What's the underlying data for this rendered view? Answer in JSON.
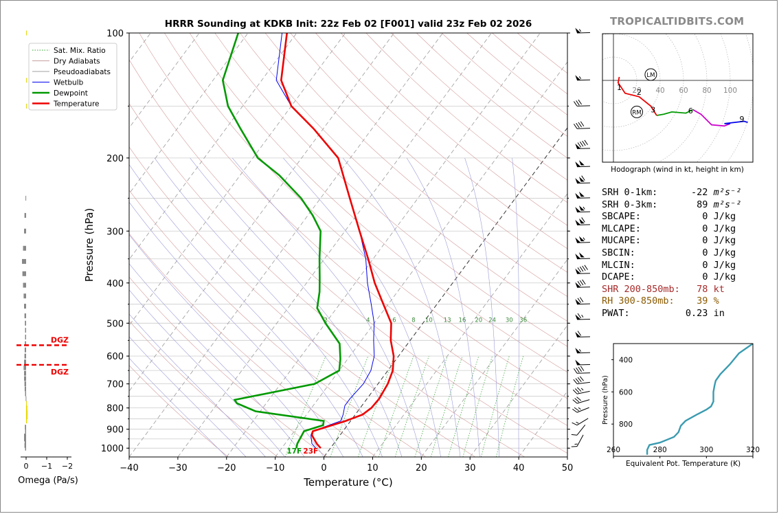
{
  "brand": "TROPICALTIDBITS.COM",
  "title": "HRRR Sounding at KDKB Init: 22z Feb 02 [F001] valid 23z Feb 02 2026",
  "skewt": {
    "xlabel": "Temperature (°C)",
    "ylabel": "Pressure (hPa)",
    "x_ticks": [
      -40,
      -30,
      -20,
      -10,
      0,
      10,
      20,
      30,
      40,
      50
    ],
    "x_tick_labels": [
      "−40",
      "−30",
      "−20",
      "−10",
      "0",
      "10",
      "20",
      "30",
      "40",
      "50"
    ],
    "p_ticks": [
      100,
      200,
      300,
      400,
      500,
      600,
      700,
      800,
      900,
      1000
    ],
    "mixing_ratio_labels": [
      "2",
      "4",
      "6",
      "8",
      "10",
      "13",
      "16",
      "20",
      "24",
      "30",
      "36"
    ],
    "surface_dewpoint_label": "17F",
    "surface_temp_label": "23F",
    "legend": [
      {
        "label": "Sat. Mix. Ratio",
        "color": "#2ca02c",
        "style": "dotted"
      },
      {
        "label": "Dry Adiabats",
        "color": "#c8a0a0",
        "style": "solid"
      },
      {
        "label": "Pseudoadiabats",
        "color": "#a0a0a0",
        "style": "solid"
      },
      {
        "label": "Wetbulb",
        "color": "#0000ee",
        "style": "solid"
      },
      {
        "label": "Dewpoint",
        "color": "#009900",
        "style": "solid"
      },
      {
        "label": "Temperature",
        "color": "#ee0000",
        "style": "solid"
      }
    ]
  },
  "chart_data": [
    {
      "type": "line",
      "name": "skew-t",
      "xlim": [
        -40,
        50
      ],
      "ylim_hpa": [
        1050,
        100
      ],
      "series": [
        {
          "name": "Temperature",
          "color": "#ee0000",
          "points": [
            [
              -2.0,
              1000
            ],
            [
              -3.5,
              975
            ],
            [
              -5.8,
              930
            ],
            [
              -6.2,
              910
            ],
            [
              -1.0,
              860
            ],
            [
              1.5,
              830
            ],
            [
              2.3,
              800
            ],
            [
              2.5,
              760
            ],
            [
              2.0,
              700
            ],
            [
              1.0,
              650
            ],
            [
              -1.0,
              600
            ],
            [
              -4.0,
              550
            ],
            [
              -6.5,
              500
            ],
            [
              -11.0,
              450
            ],
            [
              -16.0,
              400
            ],
            [
              -21.0,
              350
            ],
            [
              -27.0,
              300
            ],
            [
              -34.0,
              250
            ],
            [
              -42.5,
              200
            ],
            [
              -52.0,
              170
            ],
            [
              -60.0,
              150
            ],
            [
              -66.0,
              130
            ],
            [
              -72.0,
              100
            ]
          ]
        },
        {
          "name": "Dewpoint",
          "color": "#009900",
          "points": [
            [
              -7.0,
              1000
            ],
            [
              -7.5,
              975
            ],
            [
              -8.0,
              910
            ],
            [
              -5.0,
              880
            ],
            [
              -5.5,
              860
            ],
            [
              -21.0,
              815
            ],
            [
              -26.0,
              780
            ],
            [
              -27.0,
              765
            ],
            [
              -13.0,
              700
            ],
            [
              -10.0,
              650
            ],
            [
              -11.5,
              610
            ],
            [
              -14.0,
              560
            ],
            [
              -20.0,
              500
            ],
            [
              -24.0,
              460
            ],
            [
              -26.0,
              420
            ],
            [
              -28.0,
              390
            ],
            [
              -31.0,
              350
            ],
            [
              -35.0,
              300
            ],
            [
              -39.0,
              275
            ],
            [
              -44.0,
              250
            ],
            [
              -52.0,
              220
            ],
            [
              -59.0,
              200
            ],
            [
              -67.0,
              170
            ],
            [
              -73.0,
              150
            ],
            [
              -78.0,
              130
            ],
            [
              -82.0,
              100
            ]
          ]
        },
        {
          "name": "Wetbulb",
          "color": "#0000ee",
          "points": [
            [
              -3.0,
              1000
            ],
            [
              -4.5,
              975
            ],
            [
              -6.0,
              930
            ],
            [
              -6.3,
              910
            ],
            [
              -2.0,
              860
            ],
            [
              -2.5,
              830
            ],
            [
              -3.5,
              790
            ],
            [
              -3.5,
              760
            ],
            [
              -3.0,
              700
            ],
            [
              -3.5,
              650
            ],
            [
              -5.0,
              600
            ],
            [
              -7.5,
              550
            ],
            [
              -10.0,
              500
            ],
            [
              -13.5,
              450
            ],
            [
              -17.5,
              400
            ],
            [
              -21.5,
              350
            ],
            [
              -27.0,
              300
            ],
            [
              -34.0,
              250
            ],
            [
              -42.5,
              200
            ],
            [
              -52.0,
              170
            ],
            [
              -60.0,
              150
            ],
            [
              -67.0,
              130
            ],
            [
              -73.0,
              100
            ]
          ]
        }
      ]
    },
    {
      "type": "bar",
      "name": "omega",
      "xlabel": "Omega (Pa/s)",
      "x_ticks": [
        "0",
        "−1",
        "−2"
      ],
      "dgz_label": "DGZ",
      "dgz_hpa": [
        565,
        630
      ],
      "bars": [
        {
          "p": 1000,
          "omega": 0.05,
          "color": "#888888"
        },
        {
          "p": 985,
          "omega": 0.08,
          "color": "#888888"
        },
        {
          "p": 970,
          "omega": 0.07,
          "color": "#888888"
        },
        {
          "p": 950,
          "omega": 0.1,
          "color": "#888888"
        },
        {
          "p": 935,
          "omega": 0.1,
          "color": "#888888"
        },
        {
          "p": 910,
          "omega": 0.05,
          "color": "#888888"
        },
        {
          "p": 890,
          "omega": 0.06,
          "color": "#888888"
        },
        {
          "p": 860,
          "omega": -0.05,
          "color": "#e6d800"
        },
        {
          "p": 840,
          "omega": -0.07,
          "color": "#e6d800"
        },
        {
          "p": 820,
          "omega": -0.07,
          "color": "#e6d800"
        },
        {
          "p": 800,
          "omega": -0.06,
          "color": "#e6d800"
        },
        {
          "p": 780,
          "omega": -0.03,
          "color": "#e6d800"
        },
        {
          "p": 760,
          "omega": 0.02,
          "color": "#888888"
        },
        {
          "p": 740,
          "omega": 0.05,
          "color": "#888888"
        },
        {
          "p": 720,
          "omega": 0.07,
          "color": "#888888"
        },
        {
          "p": 700,
          "omega": 0.08,
          "color": "#888888"
        },
        {
          "p": 680,
          "omega": 0.1,
          "color": "#888888"
        },
        {
          "p": 660,
          "omega": 0.1,
          "color": "#888888"
        },
        {
          "p": 640,
          "omega": 0.12,
          "color": "#888888"
        },
        {
          "p": 620,
          "omega": 0.1,
          "color": "#888888"
        },
        {
          "p": 600,
          "omega": 0.08,
          "color": "#888888"
        },
        {
          "p": 580,
          "omega": 0.07,
          "color": "#888888"
        },
        {
          "p": 560,
          "omega": 0.06,
          "color": "#888888"
        },
        {
          "p": 540,
          "omega": 0.05,
          "color": "#888888"
        },
        {
          "p": 520,
          "omega": 0.05,
          "color": "#888888"
        },
        {
          "p": 500,
          "omega": 0.06,
          "color": "#888888"
        },
        {
          "p": 480,
          "omega": 0.08,
          "color": "#888888"
        },
        {
          "p": 455,
          "omega": 0.1,
          "color": "#888888"
        },
        {
          "p": 430,
          "omega": 0.12,
          "color": "#888888"
        },
        {
          "p": 405,
          "omega": 0.15,
          "color": "#888888"
        },
        {
          "p": 380,
          "omega": 0.18,
          "color": "#888888"
        },
        {
          "p": 355,
          "omega": 0.2,
          "color": "#888888"
        },
        {
          "p": 330,
          "omega": 0.15,
          "color": "#888888"
        },
        {
          "p": 300,
          "omega": 0.1,
          "color": "#888888"
        },
        {
          "p": 275,
          "omega": 0.08,
          "color": "#888888"
        },
        {
          "p": 250,
          "omega": 0.03,
          "color": "#888888"
        },
        {
          "p": 150,
          "omega": -0.02,
          "color": "#e6d800"
        },
        {
          "p": 130,
          "omega": -0.03,
          "color": "#e6d800"
        },
        {
          "p": 100,
          "omega": -0.01,
          "color": "#e6d800"
        }
      ]
    },
    {
      "type": "line",
      "name": "hodograph",
      "caption": "Hodograph (wind in kt, height in km)",
      "ring_labels": [
        "20",
        "40",
        "60",
        "80",
        "100"
      ],
      "height_labels": [
        "1",
        "2",
        "3",
        "6",
        "9"
      ],
      "storm_motion_labels": [
        "LM",
        "RM"
      ],
      "lm_uv": [
        32,
        5
      ],
      "rm_uv": [
        20,
        -27
      ],
      "segments": [
        {
          "color": "#ee0000",
          "points": [
            [
              5,
              3
            ],
            [
              4,
              -2
            ],
            [
              10,
              -11
            ],
            [
              22,
              -14
            ],
            [
              32,
              -22
            ],
            [
              37,
              -30
            ]
          ]
        },
        {
          "color": "#009900",
          "points": [
            [
              37,
              -30
            ],
            [
              43,
              -29
            ],
            [
              50,
              -27
            ],
            [
              62,
              -28
            ],
            [
              68,
              -25
            ]
          ]
        },
        {
          "color": "#cc00cc",
          "points": [
            [
              68,
              -25
            ],
            [
              75,
              -29
            ],
            [
              84,
              -38
            ],
            [
              95,
              -39
            ],
            [
              100,
              -37
            ]
          ]
        },
        {
          "color": "#0000ee",
          "points": [
            [
              100,
              -37
            ],
            [
              95,
              -37
            ],
            [
              112,
              -35
            ],
            [
              115,
              -36
            ]
          ]
        }
      ]
    },
    {
      "type": "line",
      "name": "theta-e",
      "xlabel": "Equivalent Pot. Temperature (K)",
      "ylabel": "Pressure (hPa)",
      "x_ticks": [
        "260",
        "280",
        "300",
        "320"
      ],
      "y_ticks": [
        "400",
        "600",
        "800"
      ],
      "xlim": [
        260,
        320
      ],
      "ylim": [
        1000,
        300
      ],
      "color": "#3a9bb0",
      "points": [
        [
          274.5,
          990
        ],
        [
          274.5,
          960
        ],
        [
          275.5,
          930
        ],
        [
          280,
          915
        ],
        [
          286,
          880
        ],
        [
          288,
          850
        ],
        [
          289,
          810
        ],
        [
          291,
          780
        ],
        [
          296,
          740
        ],
        [
          300,
          710
        ],
        [
          302,
          690
        ],
        [
          303,
          660
        ],
        [
          303,
          600
        ],
        [
          303.5,
          560
        ],
        [
          304,
          530
        ],
        [
          306,
          490
        ],
        [
          310,
          430
        ],
        [
          314,
          360
        ],
        [
          320,
          300
        ]
      ]
    }
  ],
  "params": [
    {
      "label": "SRH 0-1km:",
      "value": "-22",
      "unit": "m²s⁻²",
      "color": "#000000"
    },
    {
      "label": "SRH 0-3km:",
      "value": "89",
      "unit": "m²s⁻²",
      "color": "#000000"
    },
    {
      "label": "SBCAPE:",
      "value": "0",
      "unit": "J/kg",
      "color": "#000000"
    },
    {
      "label": "MLCAPE:",
      "value": "0",
      "unit": "J/kg",
      "color": "#000000"
    },
    {
      "label": "MUCAPE:",
      "value": "0",
      "unit": "J/kg",
      "color": "#000000"
    },
    {
      "label": "SBCIN:",
      "value": "0",
      "unit": "J/kg",
      "color": "#000000"
    },
    {
      "label": "MLCIN:",
      "value": "0",
      "unit": "J/kg",
      "color": "#000000"
    },
    {
      "label": "DCAPE:",
      "value": "0",
      "unit": "J/kg",
      "color": "#000000"
    },
    {
      "label": "SHR 200-850mb:",
      "value": "78",
      "unit": "kt",
      "color": "#a52a2a"
    },
    {
      "label": "RH 300-850mb:",
      "value": "39",
      "unit": "%",
      "color": "#8b5a00"
    },
    {
      "label": "PWAT:",
      "value": "0.23",
      "unit": "in",
      "color": "#000000"
    }
  ],
  "wind_barbs": [
    {
      "p": 100,
      "speed": 55,
      "dir": 250
    },
    {
      "p": 130,
      "speed": 55,
      "dir": 250
    },
    {
      "p": 150,
      "speed": 30,
      "dir": 250
    },
    {
      "p": 170,
      "speed": 40,
      "dir": 250
    },
    {
      "p": 190,
      "speed": 90,
      "dir": 250
    },
    {
      "p": 210,
      "speed": 100,
      "dir": 250
    },
    {
      "p": 230,
      "speed": 110,
      "dir": 250
    },
    {
      "p": 250,
      "speed": 100,
      "dir": 250
    },
    {
      "p": 270,
      "speed": 105,
      "dir": 250
    },
    {
      "p": 290,
      "speed": 110,
      "dir": 250
    },
    {
      "p": 320,
      "speed": 105,
      "dir": 250
    },
    {
      "p": 350,
      "speed": 100,
      "dir": 250
    },
    {
      "p": 380,
      "speed": 90,
      "dir": 250
    },
    {
      "p": 410,
      "speed": 80,
      "dir": 250
    },
    {
      "p": 450,
      "speed": 70,
      "dir": 250
    },
    {
      "p": 490,
      "speed": 65,
      "dir": 250
    },
    {
      "p": 540,
      "speed": 60,
      "dir": 250
    },
    {
      "p": 590,
      "speed": 55,
      "dir": 250
    },
    {
      "p": 630,
      "speed": 50,
      "dir": 250
    },
    {
      "p": 660,
      "speed": 40,
      "dir": 250
    },
    {
      "p": 700,
      "speed": 40,
      "dir": 245
    },
    {
      "p": 740,
      "speed": 35,
      "dir": 240
    },
    {
      "p": 780,
      "speed": 30,
      "dir": 235
    },
    {
      "p": 820,
      "speed": 25,
      "dir": 230
    },
    {
      "p": 880,
      "speed": 15,
      "dir": 220
    },
    {
      "p": 930,
      "speed": 10,
      "dir": 200
    },
    {
      "p": 990,
      "speed": 15,
      "dir": 190
    }
  ]
}
